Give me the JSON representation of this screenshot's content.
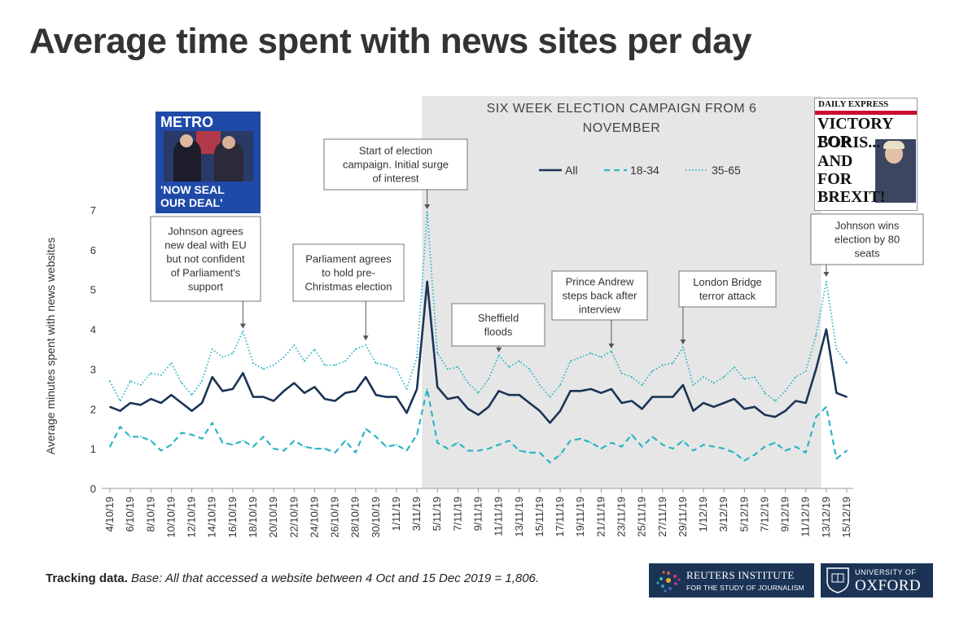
{
  "title": "Average time spent with news sites per day",
  "chart_data": {
    "type": "line",
    "ylabel": "Average minutes spent with news websites",
    "ylim": [
      0,
      7
    ],
    "yticks": [
      0,
      1,
      2,
      3,
      4,
      5,
      6,
      7
    ],
    "x_dates": [
      "4/10/19",
      "5/10/19",
      "6/10/19",
      "7/10/19",
      "8/10/19",
      "9/10/19",
      "10/10/19",
      "11/10/19",
      "12/10/19",
      "13/10/19",
      "14/10/19",
      "15/10/19",
      "16/10/19",
      "17/10/19",
      "18/10/19",
      "19/10/19",
      "20/10/19",
      "21/10/19",
      "22/10/19",
      "23/10/19",
      "24/10/19",
      "25/10/19",
      "26/10/19",
      "27/10/19",
      "28/10/19",
      "29/10/19",
      "30/10/19",
      "31/10/19",
      "1/11/19",
      "2/11/19",
      "3/11/19",
      "4/11/19",
      "5/11/19",
      "6/11/19",
      "7/11/19",
      "8/11/19",
      "9/11/19",
      "10/11/19",
      "11/11/19",
      "12/11/19",
      "13/11/19",
      "14/11/19",
      "15/11/19",
      "16/11/19",
      "17/11/19",
      "18/11/19",
      "19/11/19",
      "20/11/19",
      "21/11/19",
      "22/11/19",
      "23/11/19",
      "24/11/19",
      "25/11/19",
      "26/11/19",
      "27/11/19",
      "28/11/19",
      "29/11/19",
      "30/11/19",
      "1/12/19",
      "2/12/19",
      "3/12/19",
      "4/12/19",
      "5/12/19",
      "6/12/19",
      "7/12/19",
      "8/12/19",
      "9/12/19",
      "10/12/19",
      "11/12/19",
      "12/12/19",
      "13/12/19",
      "14/12/19",
      "15/12/19"
    ],
    "x_tick_labels": [
      "4/10/19",
      "6/10/19",
      "8/10/19",
      "10/10/19",
      "12/10/19",
      "14/10/19",
      "16/10/19",
      "18/10/19",
      "20/10/19",
      "22/10/19",
      "24/10/19",
      "26/10/19",
      "28/10/19",
      "30/10/19",
      "1/11/19",
      "3/11/19",
      "5/11/19",
      "7/11/19",
      "9/11/19",
      "11/11/19",
      "13/11/19",
      "15/11/19",
      "17/11/19",
      "19/11/19",
      "21/11/19",
      "23/11/19",
      "25/11/19",
      "27/11/19",
      "29/11/19",
      "1/12/19",
      "3/12/19",
      "5/12/19",
      "7/12/19",
      "9/12/19",
      "11/12/19",
      "13/12/19",
      "15/12/19"
    ],
    "series": [
      {
        "name": "All",
        "style": "solid",
        "color": "#1b3456",
        "values": [
          2.05,
          1.95,
          2.15,
          2.1,
          2.25,
          2.15,
          2.35,
          2.15,
          1.95,
          2.15,
          2.8,
          2.45,
          2.5,
          2.9,
          2.3,
          2.3,
          2.2,
          2.45,
          2.65,
          2.4,
          2.55,
          2.25,
          2.2,
          2.4,
          2.45,
          2.8,
          2.35,
          2.3,
          2.3,
          1.9,
          2.5,
          5.2,
          2.55,
          2.25,
          2.3,
          2.0,
          1.85,
          2.05,
          2.45,
          2.35,
          2.35,
          2.15,
          1.95,
          1.65,
          1.95,
          2.45,
          2.45,
          2.5,
          2.4,
          2.5,
          2.15,
          2.2,
          2.0,
          2.3,
          2.3,
          2.3,
          2.6,
          1.95,
          2.15,
          2.05,
          2.15,
          2.25,
          2.0,
          2.05,
          1.85,
          1.8,
          1.95,
          2.2,
          2.15,
          3.0,
          4.0,
          2.4,
          2.3
        ]
      },
      {
        "name": "18-34",
        "style": "dashed",
        "color": "#2bb5c4",
        "values": [
          1.05,
          1.55,
          1.3,
          1.3,
          1.2,
          0.95,
          1.1,
          1.4,
          1.35,
          1.25,
          1.65,
          1.15,
          1.1,
          1.2,
          1.05,
          1.3,
          1.0,
          0.95,
          1.2,
          1.05,
          1.0,
          1.0,
          0.9,
          1.2,
          0.9,
          1.5,
          1.3,
          1.05,
          1.1,
          0.95,
          1.35,
          2.5,
          1.15,
          1.0,
          1.15,
          0.95,
          0.95,
          1.0,
          1.1,
          1.2,
          0.95,
          0.9,
          0.9,
          0.65,
          0.85,
          1.2,
          1.25,
          1.15,
          1.0,
          1.15,
          1.05,
          1.35,
          1.05,
          1.3,
          1.1,
          1.0,
          1.2,
          0.95,
          1.1,
          1.05,
          1.0,
          0.9,
          0.7,
          0.85,
          1.05,
          1.15,
          0.95,
          1.05,
          0.9,
          1.8,
          2.05,
          0.75,
          0.95
        ]
      },
      {
        "name": "35-65",
        "style": "dotted",
        "color": "#2bb5c4",
        "values": [
          2.7,
          2.2,
          2.7,
          2.6,
          2.9,
          2.85,
          3.15,
          2.65,
          2.35,
          2.7,
          3.5,
          3.3,
          3.4,
          3.95,
          3.15,
          3.0,
          3.1,
          3.3,
          3.6,
          3.2,
          3.5,
          3.1,
          3.1,
          3.2,
          3.5,
          3.6,
          3.15,
          3.1,
          3.0,
          2.5,
          3.3,
          6.95,
          3.4,
          3.0,
          3.05,
          2.65,
          2.4,
          2.75,
          3.35,
          3.05,
          3.2,
          3.0,
          2.6,
          2.3,
          2.6,
          3.2,
          3.3,
          3.4,
          3.3,
          3.45,
          2.9,
          2.8,
          2.6,
          2.95,
          3.1,
          3.15,
          3.55,
          2.6,
          2.8,
          2.65,
          2.8,
          3.05,
          2.75,
          2.8,
          2.4,
          2.2,
          2.45,
          2.8,
          2.95,
          3.85,
          5.2,
          3.5,
          3.15
        ]
      }
    ],
    "shaded_region": {
      "start": "4/11/19",
      "end": "12/12/19",
      "label": "SIX WEEK ELECTION CAMPAIGN FROM 6 NOVEMBER",
      "label_lines": [
        "SIX WEEK ELECTION CAMPAIGN FROM 6",
        "NOVEMBER"
      ]
    },
    "legend": [
      "All",
      "18-34",
      "35-65"
    ],
    "annotations": [
      {
        "date": "17/10/19",
        "y": 4.0,
        "lines": [
          "Johnson agrees",
          "new deal with EU",
          "but not confident",
          "of Parliament's",
          "support"
        ]
      },
      {
        "date": "29/10/19",
        "y": 3.7,
        "lines": [
          "Parliament agrees",
          "to hold pre-",
          "Christmas election"
        ]
      },
      {
        "date": "4/11/19",
        "y": 7.0,
        "lines": [
          "Start of election",
          "campaign. Initial surge",
          "of interest"
        ]
      },
      {
        "date": "11/11/19",
        "y": 3.4,
        "lines": [
          "Sheffield",
          "floods"
        ]
      },
      {
        "date": "22/11/19",
        "y": 3.5,
        "lines": [
          "Prince Andrew",
          "steps back after",
          "interview"
        ]
      },
      {
        "date": "29/11/19",
        "y": 3.6,
        "lines": [
          "London Bridge",
          "terror attack"
        ]
      },
      {
        "date": "13/12/19",
        "y": 5.3,
        "lines": [
          "Johnson wins",
          "election by 80",
          "seats"
        ]
      }
    ]
  },
  "covers": {
    "metro": {
      "masthead": "METRO",
      "headline_lines": [
        "'NOW SEAL",
        "OUR DEAL'"
      ]
    },
    "express": {
      "masthead": "DAILY EXPRESS",
      "headline_lines": [
        "VICTORY FOR",
        "BORIS...",
        "AND",
        "FOR",
        "BREXIT!"
      ]
    }
  },
  "footer": {
    "lead": "Tracking data.",
    "note": "Base: All that accessed a website between 4 Oct and 15 Dec 2019 = 1,806."
  },
  "logos": {
    "reuters": {
      "name": "REUTERS INSTITUTE",
      "tagline": "FOR THE STUDY OF JOURNALISM"
    },
    "oxford": {
      "top": "UNIVERSITY OF",
      "name": "OXFORD"
    }
  },
  "colors": {
    "navy": "#1b3456",
    "teal": "#2bb5c4",
    "band": "#e6e6e6",
    "metro_blue": "#1f4aa8",
    "express_red": "#c8102e"
  }
}
